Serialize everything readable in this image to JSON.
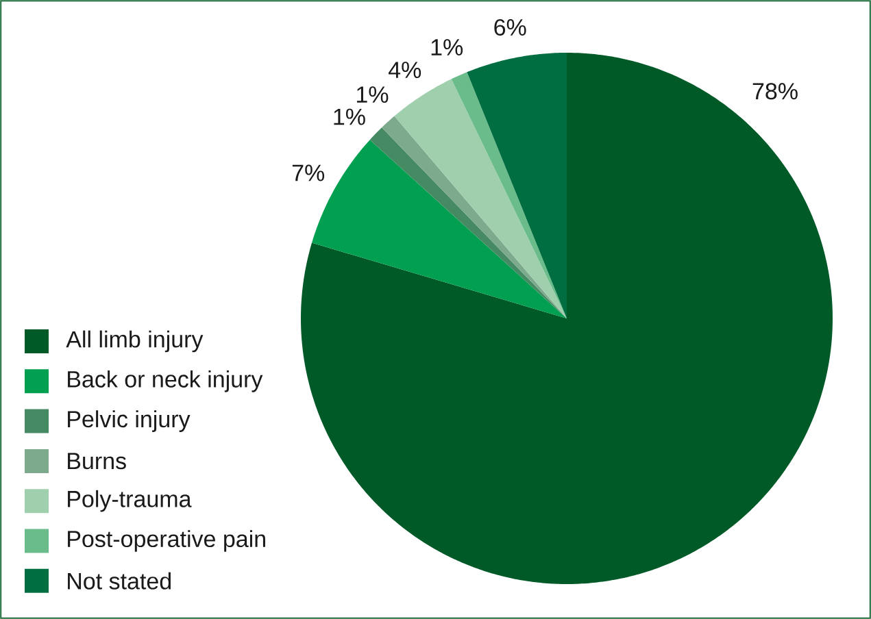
{
  "chart_data": {
    "type": "pie",
    "categories": [
      "All limb injury",
      "Back or neck injury",
      "Pelvic injury",
      "Burns",
      "Poly-trauma",
      "Post-operative pain",
      "Not stated"
    ],
    "values": [
      78,
      7,
      1,
      1,
      4,
      1,
      6
    ],
    "colors": [
      "#005a28",
      "#00a050",
      "#458a63",
      "#7daa8d",
      "#a0cfae",
      "#6abd8b",
      "#006e41"
    ],
    "value_labels": [
      "78%",
      "7%",
      "1%",
      "1%",
      "4%",
      "1%",
      "6%"
    ],
    "legend": "bottom left"
  }
}
